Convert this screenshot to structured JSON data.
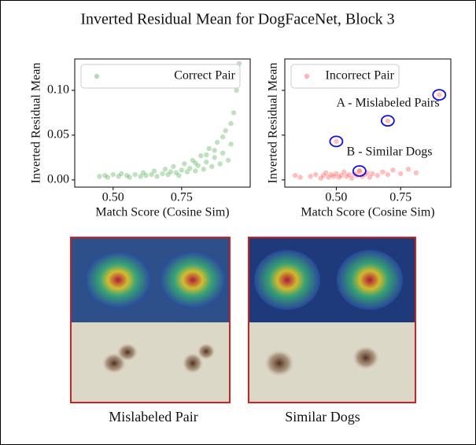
{
  "title": "Inverted Residual Mean for DogFaceNet, Block 3",
  "images": [
    {
      "caption": "Mislabeled Pair"
    },
    {
      "caption": "Similar Dogs"
    }
  ],
  "chart_data": [
    {
      "type": "scatter",
      "xlabel": "Match Score (Cosine Sim)",
      "ylabel": "Inverted Residual Mean",
      "xlim": [
        0.36,
        1.0
      ],
      "ylim": [
        -0.008,
        0.135
      ],
      "xticks": [
        {
          "value": 0.5,
          "label": "0.50"
        },
        {
          "value": 0.75,
          "label": "0.75"
        }
      ],
      "yticks": [
        {
          "value": 0,
          "label": "0.00"
        },
        {
          "value": 0.05,
          "label": "0.05"
        },
        {
          "value": 0.1,
          "label": "0.10"
        }
      ],
      "ytick_labels": true,
      "legend": "upper left",
      "series": [
        {
          "name": "Correct Pair",
          "color": "#2e9a2e",
          "x": [
            0.45,
            0.47,
            0.48,
            0.5,
            0.52,
            0.53,
            0.55,
            0.56,
            0.58,
            0.6,
            0.61,
            0.62,
            0.64,
            0.65,
            0.66,
            0.68,
            0.69,
            0.7,
            0.71,
            0.72,
            0.73,
            0.74,
            0.75,
            0.76,
            0.77,
            0.78,
            0.79,
            0.8,
            0.81,
            0.82,
            0.83,
            0.84,
            0.85,
            0.86,
            0.87,
            0.88,
            0.89,
            0.9,
            0.91,
            0.92,
            0.93,
            0.94,
            0.95,
            0.96,
            0.95,
            0.93,
            0.9,
            0.87,
            0.84,
            0.8
          ],
          "values": [
            0.004,
            0.005,
            0.003,
            0.006,
            0.004,
            0.007,
            0.005,
            0.003,
            0.006,
            0.004,
            0.008,
            0.005,
            0.006,
            0.01,
            0.004,
            0.007,
            0.012,
            0.006,
            0.009,
            0.015,
            0.008,
            0.005,
            0.011,
            0.018,
            0.009,
            0.013,
            0.022,
            0.01,
            0.016,
            0.027,
            0.012,
            0.02,
            0.035,
            0.015,
            0.025,
            0.042,
            0.018,
            0.03,
            0.055,
            0.022,
            0.04,
            0.075,
            0.118,
            0.13,
            0.1,
            0.063,
            0.048,
            0.033,
            0.028,
            0.019
          ]
        }
      ]
    },
    {
      "type": "scatter",
      "xlabel": "Match Score (Cosine Sim)",
      "ylabel": "Inverted Residual Mean",
      "xlim": [
        0.3,
        0.945
      ],
      "ylim": [
        -0.008,
        0.135
      ],
      "xticks": [
        {
          "value": 0.5,
          "label": "0.50"
        },
        {
          "value": 0.75,
          "label": "0.75"
        }
      ],
      "yticks": [
        0,
        0.05,
        0.1
      ],
      "ytick_labels": false,
      "legend": "upper left",
      "series": [
        {
          "name": "Incorrect Pair",
          "color": "#ff2a2a",
          "x": [
            0.34,
            0.36,
            0.4,
            0.42,
            0.44,
            0.45,
            0.46,
            0.47,
            0.48,
            0.49,
            0.5,
            0.51,
            0.52,
            0.53,
            0.54,
            0.55,
            0.56,
            0.57,
            0.58,
            0.59,
            0.6,
            0.61,
            0.62,
            0.63,
            0.64,
            0.66,
            0.68,
            0.7,
            0.72,
            0.75,
            0.78,
            0.81,
            0.5,
            0.7,
            0.9,
            0.59
          ],
          "values": [
            0.005,
            0.003,
            0.004,
            0.006,
            0.002,
            0.005,
            0.008,
            0.003,
            0.006,
            0.004,
            0.007,
            0.003,
            0.005,
            0.009,
            0.004,
            0.006,
            0.002,
            0.007,
            0.005,
            0.01,
            0.004,
            0.006,
            0.008,
            0.003,
            0.007,
            0.005,
            0.009,
            0.006,
            0.011,
            0.007,
            0.012,
            0.008,
            0.043,
            0.066,
            0.095,
            0.01
          ]
        }
      ],
      "annotations": [
        {
          "text": "A - Mislabeled Pairs",
          "color": "#1010e0"
        },
        {
          "text": "B - Similar Dogs",
          "color": "#800080"
        }
      ],
      "highlights": {
        "color": "#1010e0",
        "x": [
          0.9,
          0.7,
          0.5,
          0.59
        ],
        "values": [
          0.095,
          0.066,
          0.043,
          0.01
        ]
      }
    }
  ]
}
